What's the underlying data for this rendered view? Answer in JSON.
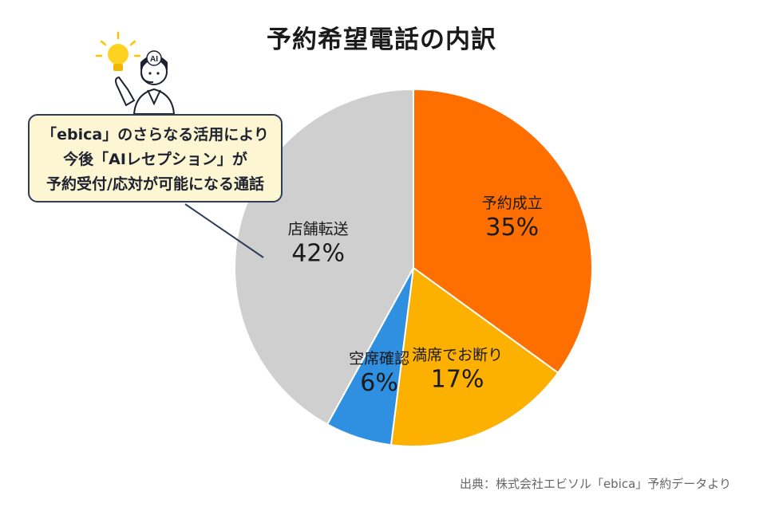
{
  "chart_data": {
    "type": "pie",
    "title": "予約希望電話の内訳",
    "slices": [
      {
        "label": "予約成立",
        "value": 35,
        "display": "35%",
        "color": "#ff6f00"
      },
      {
        "label": "満席でお断り",
        "value": 17,
        "display": "17%",
        "color": "#fcb000"
      },
      {
        "label": "空席確認",
        "value": 6,
        "display": "6%",
        "color": "#2f8fe0"
      },
      {
        "label": "店舗転送",
        "value": 42,
        "display": "42%",
        "color": "#cfcfcf"
      }
    ],
    "start": "12 o'clock",
    "direction": "clockwise"
  },
  "callout": {
    "lines": [
      "「ebica」のさらなる活用により",
      "今後「AIレセプション」が",
      "予約受付/応対が可能になる通話"
    ],
    "points_to": "店舗転送"
  },
  "mascot": {
    "badge": "AI",
    "icon": "lightbulb-icon"
  },
  "source": "出典：株式会社エビソル「ebica」予約データより"
}
